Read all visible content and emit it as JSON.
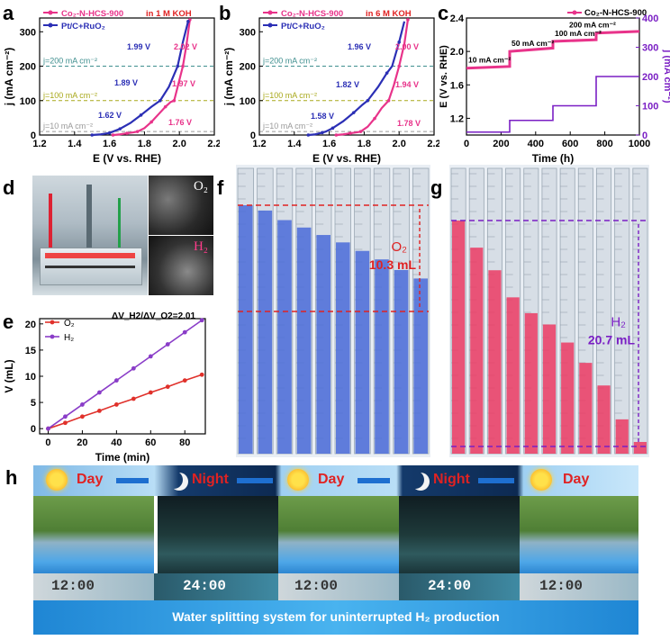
{
  "panels": {
    "a": "a",
    "b": "b",
    "c": "c",
    "d": "d",
    "e": "e",
    "f": "f",
    "g": "g",
    "h": "h"
  },
  "chart_data": [
    {
      "id": "a",
      "type": "line",
      "xlabel": "E (V vs. RHE)",
      "ylabel": "j (mA cm⁻²)",
      "xlim": [
        1.2,
        2.2
      ],
      "ylim": [
        0,
        340
      ],
      "xticks": [
        1.2,
        1.4,
        1.6,
        1.8,
        2.0,
        2.2
      ],
      "yticks": [
        0,
        100,
        200,
        300
      ],
      "condition": "in 1 M KOH",
      "series": [
        {
          "name": "Co₂-N-HCS-900",
          "color": "#e8338a",
          "x": [
            1.62,
            1.66,
            1.7,
            1.74,
            1.76,
            1.8,
            1.84,
            1.88,
            1.92,
            1.95,
            1.97,
            1.99,
            2.02,
            2.04,
            2.06
          ],
          "y": [
            0,
            2,
            5,
            8,
            10,
            20,
            38,
            60,
            82,
            96,
            100,
            140,
            200,
            260,
            335
          ]
        },
        {
          "name": "Pt/C+RuO₂",
          "color": "#2b2fb5",
          "x": [
            1.5,
            1.55,
            1.6,
            1.62,
            1.66,
            1.72,
            1.78,
            1.84,
            1.89,
            1.94,
            1.99,
            2.02,
            2.05
          ],
          "y": [
            0,
            2,
            6,
            10,
            18,
            35,
            58,
            82,
            100,
            140,
            200,
            270,
            330
          ]
        }
      ],
      "reference_lines": [
        {
          "label": "j=200 mA cm⁻²",
          "value": 200,
          "color": "#3f8f8f"
        },
        {
          "label": "j=100 mA cm⁻²",
          "value": 100,
          "color": "#a8a81a"
        },
        {
          "label": "j=10 mA cm⁻²",
          "value": 10,
          "color": "#999999"
        }
      ],
      "annotations": [
        {
          "text": "1.99 V",
          "color": "#2b2fb5"
        },
        {
          "text": "2.02 V",
          "color": "#e8338a"
        },
        {
          "text": "1.89 V",
          "color": "#2b2fb5"
        },
        {
          "text": "1.97 V",
          "color": "#e8338a"
        },
        {
          "text": "1.62 V",
          "color": "#2b2fb5"
        },
        {
          "text": "1.76 V",
          "color": "#e8338a"
        }
      ]
    },
    {
      "id": "b",
      "type": "line",
      "xlabel": "E (V vs. RHE)",
      "ylabel": "j (mA cm⁻²)",
      "xlim": [
        1.2,
        2.2
      ],
      "ylim": [
        0,
        340
      ],
      "xticks": [
        1.2,
        1.4,
        1.6,
        1.8,
        2.0,
        2.2
      ],
      "yticks": [
        0,
        100,
        200,
        300
      ],
      "condition": "in 6 M KOH",
      "series": [
        {
          "name": "Co₂-N-HCS-900",
          "color": "#e8338a",
          "x": [
            1.64,
            1.68,
            1.72,
            1.76,
            1.78,
            1.82,
            1.86,
            1.9,
            1.94,
            1.97,
            2.0,
            2.03,
            2.05
          ],
          "y": [
            0,
            2,
            5,
            8,
            10,
            24,
            48,
            78,
            100,
            145,
            200,
            265,
            335
          ]
        },
        {
          "name": "Pt/C+RuO₂",
          "color": "#2b2fb5",
          "x": [
            1.48,
            1.52,
            1.56,
            1.58,
            1.62,
            1.68,
            1.74,
            1.79,
            1.82,
            1.88,
            1.93,
            1.96,
            2.0,
            2.03
          ],
          "y": [
            0,
            2,
            7,
            10,
            20,
            40,
            65,
            88,
            100,
            140,
            180,
            200,
            270,
            330
          ]
        }
      ],
      "reference_lines": [
        {
          "label": "j=200 mA cm⁻²",
          "value": 200,
          "color": "#3f8f8f"
        },
        {
          "label": "j=100 mA cm⁻²",
          "value": 100,
          "color": "#a8a81a"
        },
        {
          "label": "j=10 mA cm⁻²",
          "value": 10,
          "color": "#999999"
        }
      ],
      "annotations": [
        {
          "text": "1.96 V",
          "color": "#2b2fb5"
        },
        {
          "text": "2.00 V",
          "color": "#e8338a"
        },
        {
          "text": "1.82 V",
          "color": "#2b2fb5"
        },
        {
          "text": "1.94 V",
          "color": "#e8338a"
        },
        {
          "text": "1.58 V",
          "color": "#2b2fb5"
        },
        {
          "text": "1.78 V",
          "color": "#e8338a"
        }
      ]
    },
    {
      "id": "c",
      "type": "line",
      "xlabel": "Time (h)",
      "ylabel": "E (V vs. RHE)",
      "ylabel_right": "j (mA cm⁻²)",
      "xlim": [
        0,
        1000
      ],
      "ylim": [
        1.0,
        2.4
      ],
      "ylim_right": [
        0,
        400
      ],
      "xticks": [
        0,
        200,
        400,
        600,
        800,
        1000
      ],
      "yticks": [
        1.2,
        1.6,
        2.0,
        2.4
      ],
      "yticks_right": [
        0,
        100,
        200,
        300,
        400
      ],
      "series": [
        {
          "name": "Co₂-N-HCS-900",
          "color": "#e8338a",
          "axis": "left",
          "x": [
            0,
            250,
            250,
            500,
            500,
            750,
            750,
            1000
          ],
          "y": [
            1.8,
            1.82,
            2.0,
            2.04,
            2.12,
            2.14,
            2.22,
            2.24
          ]
        },
        {
          "name": "j",
          "color": "#7a1fc4",
          "axis": "right",
          "x": [
            0,
            250,
            250,
            500,
            500,
            750,
            750,
            1000
          ],
          "y": [
            10,
            10,
            50,
            50,
            100,
            100,
            200,
            200
          ]
        }
      ],
      "annotations": [
        {
          "text": "10 mA cm⁻²"
        },
        {
          "text": "50 mA cm⁻²"
        },
        {
          "text": "100 mA cm⁻²"
        },
        {
          "text": "200 mA cm⁻²"
        }
      ]
    },
    {
      "id": "e",
      "type": "line",
      "xlabel": "Time (min)",
      "ylabel": "V (mL)",
      "xlim": [
        -5,
        92
      ],
      "ylim": [
        -1,
        21
      ],
      "xticks": [
        0,
        20,
        40,
        60,
        80
      ],
      "yticks": [
        0,
        5,
        10,
        15,
        20
      ],
      "annotation": "ΔV_H2/ΔV_O2=2.01",
      "series": [
        {
          "name": "O₂",
          "color": "#e0312b",
          "x": [
            0,
            10,
            20,
            30,
            40,
            50,
            60,
            70,
            80,
            90
          ],
          "y": [
            0,
            1.1,
            2.3,
            3.4,
            4.6,
            5.7,
            6.9,
            8.0,
            9.2,
            10.3
          ]
        },
        {
          "name": "H₂",
          "color": "#8a3dc8",
          "x": [
            0,
            10,
            20,
            30,
            40,
            50,
            60,
            70,
            80,
            90
          ],
          "y": [
            0,
            2.3,
            4.6,
            6.9,
            9.2,
            11.5,
            13.8,
            16.1,
            18.4,
            20.7
          ]
        }
      ]
    }
  ],
  "photos": {
    "d": {
      "label": "O₂",
      "label2": "H₂"
    },
    "f": {
      "annotation_gas": "O₂",
      "annotation_volume": "10.3 mL",
      "tubes": [
        1.0,
        0.95,
        0.86,
        0.79,
        0.72,
        0.65,
        0.57,
        0.49,
        0.39,
        0.31
      ]
    },
    "g": {
      "annotation_gas": "H₂",
      "annotation_volume": "20.7 mL",
      "tubes": [
        1.0,
        0.88,
        0.78,
        0.66,
        0.59,
        0.54,
        0.46,
        0.37,
        0.27,
        0.12,
        0.02
      ]
    }
  },
  "banner": {
    "day1": "Day",
    "night1": "Night",
    "day2": "Day",
    "night2": "Night",
    "day3": "Day",
    "t1": "12:00",
    "t2": "24:00",
    "t3": "12:00",
    "t4": "24:00",
    "t5": "12:00",
    "caption": "Water splitting system for uninterrupted H₂ production"
  }
}
